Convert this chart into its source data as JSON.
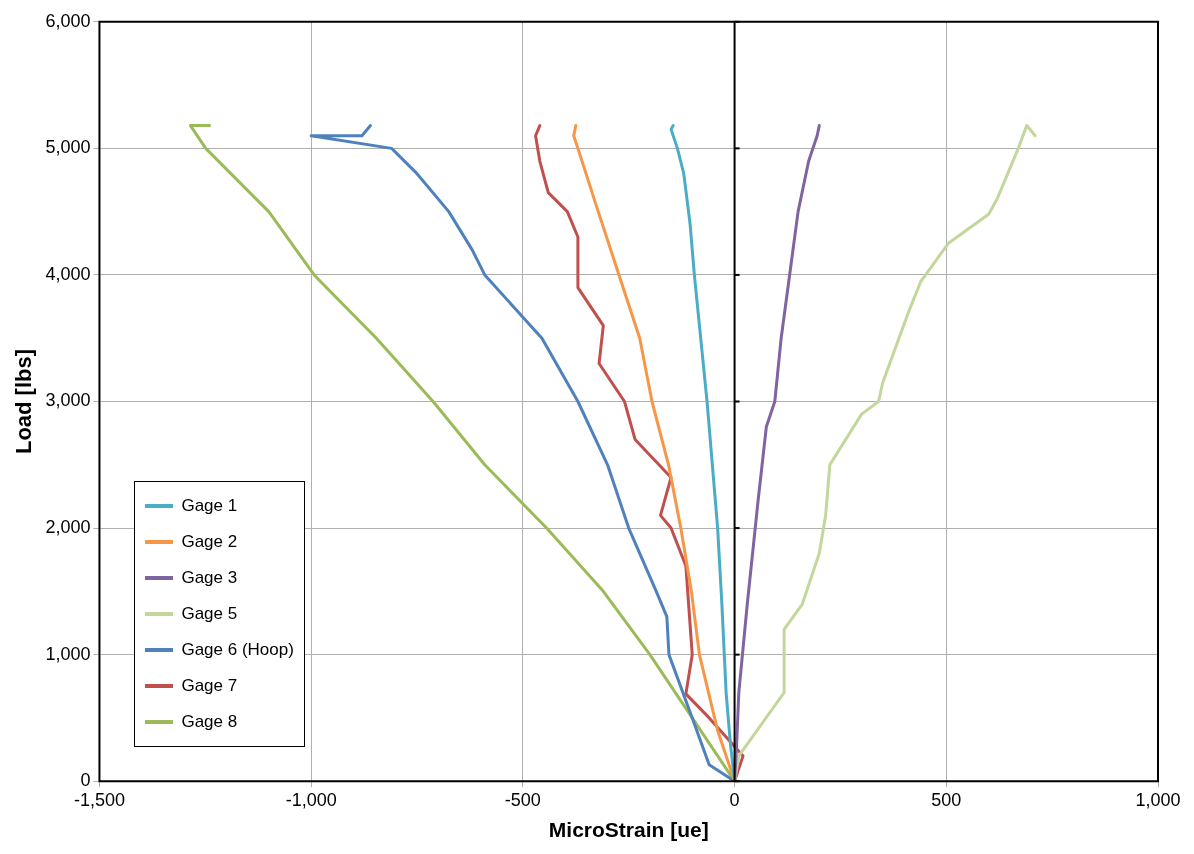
{
  "chart_data": {
    "type": "line",
    "xlabel": "MicroStrain [ue]",
    "ylabel": "Load [lbs]",
    "xlim": [
      -1500,
      1000
    ],
    "ylim": [
      0,
      6000
    ],
    "xticks": [
      {
        "value": -1500,
        "label": "-1,500"
      },
      {
        "value": -1000,
        "label": "-1,000"
      },
      {
        "value": -500,
        "label": "-500"
      },
      0,
      500,
      {
        "value": 1000,
        "label": "1,000"
      }
    ],
    "yticks": [
      0,
      {
        "value": 1000,
        "label": "1,000"
      },
      {
        "value": 2000,
        "label": "2,000"
      },
      {
        "value": 3000,
        "label": "3,000"
      },
      {
        "value": 4000,
        "label": "4,000"
      },
      {
        "value": 5000,
        "label": "5,000"
      },
      {
        "value": 6000,
        "label": "6,000"
      }
    ],
    "grid": true,
    "legend": "bottom left",
    "marker": "none",
    "line_style": "solid",
    "ref_lines": [
      {
        "axis": "x",
        "value": 0,
        "color": "#000000"
      }
    ],
    "series": [
      {
        "name": "Gage 1",
        "color": "#4bacc6",
        "x": [
          0,
          -10,
          -20,
          -30,
          -40,
          -55,
          -65,
          -80,
          -95,
          -105,
          -120,
          -135,
          -150,
          -145
        ],
        "values": [
          0,
          300,
          700,
          1400,
          2000,
          2600,
          3000,
          3500,
          4000,
          4400,
          4800,
          5000,
          5150,
          5180
        ]
      },
      {
        "name": "Gage 2",
        "color": "#f79646",
        "x": [
          0,
          -40,
          -83,
          -102,
          -127,
          -156,
          -195,
          -224,
          -273,
          -322,
          -370,
          -380,
          -375
        ],
        "values": [
          0,
          400,
          1000,
          1500,
          2000,
          2500,
          3000,
          3500,
          4000,
          4500,
          5000,
          5100,
          5180
        ]
      },
      {
        "name": "Gage 3",
        "color": "#8064a2",
        "x": [
          0,
          5,
          10,
          30,
          55,
          75,
          95,
          110,
          130,
          150,
          175,
          195,
          200
        ],
        "values": [
          0,
          300,
          700,
          1400,
          2200,
          2800,
          3000,
          3500,
          4000,
          4500,
          4900,
          5100,
          5180
        ]
      },
      {
        "name": "Gage 5",
        "color": "#c3d69b",
        "x": [
          0,
          10,
          117,
          117,
          160,
          200,
          215,
          225,
          300,
          340,
          350,
          410,
          440,
          505,
          600,
          620,
          670,
          690,
          710
        ],
        "values": [
          0,
          200,
          700,
          1200,
          1400,
          1800,
          2100,
          2500,
          2900,
          3000,
          3150,
          3700,
          3950,
          4250,
          4480,
          4600,
          5000,
          5180,
          5100
        ]
      },
      {
        "name": "Gage 6 (Hoop)",
        "color": "#4f81bd",
        "x": [
          0,
          -60,
          -100,
          -155,
          -160,
          -185,
          -250,
          -300,
          -370,
          -455,
          -590,
          -620,
          -675,
          -750,
          -810,
          -1000,
          -880,
          -860
        ],
        "values": [
          0,
          130,
          500,
          1000,
          1300,
          1500,
          2000,
          2500,
          3000,
          3500,
          4000,
          4200,
          4500,
          4800,
          5000,
          5100,
          5100,
          5180
        ]
      },
      {
        "name": "Gage 7",
        "color": "#c0504d",
        "x": [
          0,
          20,
          -60,
          -115,
          -100,
          -115,
          -150,
          -175,
          -150,
          -235,
          -260,
          -320,
          -310,
          -370,
          -370,
          -395,
          -440,
          -460,
          -470,
          -460
        ],
        "values": [
          0,
          200,
          500,
          690,
          1000,
          1700,
          2000,
          2100,
          2400,
          2700,
          3000,
          3300,
          3600,
          3900,
          4300,
          4500,
          4650,
          4900,
          5100,
          5180
        ]
      },
      {
        "name": "Gage 8",
        "color": "#9bbb59",
        "x": [
          0,
          -100,
          -200,
          -310,
          -444,
          -590,
          -712,
          -846,
          -993,
          -1100,
          -1249,
          -1285,
          -1240
        ],
        "values": [
          0,
          500,
          1000,
          1500,
          2000,
          2500,
          3000,
          3500,
          4000,
          4500,
          5000,
          5180,
          5180
        ]
      }
    ]
  }
}
